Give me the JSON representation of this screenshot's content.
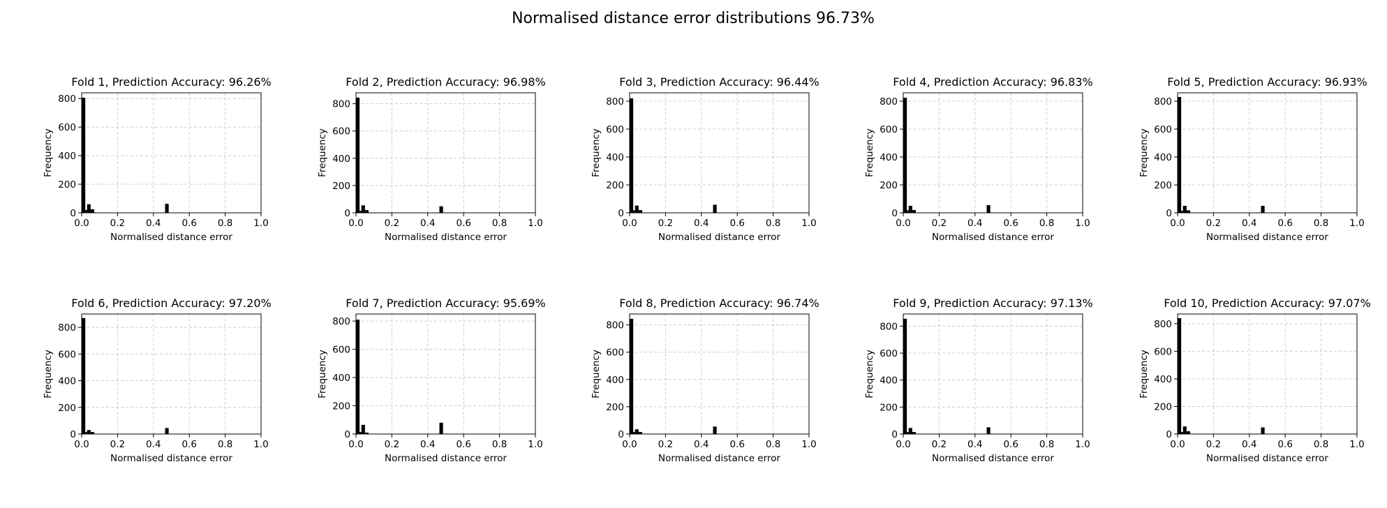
{
  "figure": {
    "suptitle": "Normalised distance error distributions 96.73%"
  },
  "chart_data": [
    {
      "type": "bar",
      "title": "Fold 1, Prediction Accuracy: 96.26%",
      "xlabel": "Normalised distance error",
      "ylabel": "Frequency",
      "xlim": [
        0,
        1.0
      ],
      "ylim": [
        0,
        840
      ],
      "xticks": [
        "0.0",
        "0.2",
        "0.4",
        "0.6",
        "0.8",
        "1.0"
      ],
      "yticks": [
        0,
        200,
        400,
        600,
        800
      ],
      "grid": true,
      "bins": [
        {
          "x0": 0.0,
          "x1": 0.02,
          "count": 806
        },
        {
          "x0": 0.02,
          "x1": 0.03,
          "count": 20
        },
        {
          "x0": 0.03,
          "x1": 0.05,
          "count": 60
        },
        {
          "x0": 0.05,
          "x1": 0.07,
          "count": 25
        },
        {
          "x0": 0.465,
          "x1": 0.485,
          "count": 63
        }
      ]
    },
    {
      "type": "bar",
      "title": "Fold 2, Prediction Accuracy: 96.98%",
      "xlabel": "Normalised distance error",
      "ylabel": "Frequency",
      "xlim": [
        0,
        1.0
      ],
      "ylim": [
        0,
        880
      ],
      "xticks": [
        "0.0",
        "0.2",
        "0.4",
        "0.6",
        "0.8",
        "1.0"
      ],
      "yticks": [
        0,
        200,
        400,
        600,
        800
      ],
      "grid": true,
      "bins": [
        {
          "x0": 0.0,
          "x1": 0.02,
          "count": 845
        },
        {
          "x0": 0.02,
          "x1": 0.03,
          "count": 15
        },
        {
          "x0": 0.03,
          "x1": 0.05,
          "count": 55
        },
        {
          "x0": 0.05,
          "x1": 0.07,
          "count": 20
        },
        {
          "x0": 0.465,
          "x1": 0.485,
          "count": 48
        }
      ]
    },
    {
      "type": "bar",
      "title": "Fold 3, Prediction Accuracy: 96.44%",
      "xlabel": "Normalised distance error",
      "ylabel": "Frequency",
      "xlim": [
        0,
        1.0
      ],
      "ylim": [
        0,
        860
      ],
      "xticks": [
        "0.0",
        "0.2",
        "0.4",
        "0.6",
        "0.8",
        "1.0"
      ],
      "yticks": [
        0,
        200,
        400,
        600,
        800
      ],
      "grid": true,
      "bins": [
        {
          "x0": 0.0,
          "x1": 0.02,
          "count": 820
        },
        {
          "x0": 0.02,
          "x1": 0.03,
          "count": 18
        },
        {
          "x0": 0.03,
          "x1": 0.05,
          "count": 52
        },
        {
          "x0": 0.05,
          "x1": 0.07,
          "count": 20
        },
        {
          "x0": 0.465,
          "x1": 0.485,
          "count": 58
        }
      ]
    },
    {
      "type": "bar",
      "title": "Fold 4, Prediction Accuracy: 96.83%",
      "xlabel": "Normalised distance error",
      "ylabel": "Frequency",
      "xlim": [
        0,
        1.0
      ],
      "ylim": [
        0,
        860
      ],
      "xticks": [
        "0.0",
        "0.2",
        "0.4",
        "0.6",
        "0.8",
        "1.0"
      ],
      "yticks": [
        0,
        200,
        400,
        600,
        800
      ],
      "grid": true,
      "bins": [
        {
          "x0": 0.0,
          "x1": 0.02,
          "count": 825
        },
        {
          "x0": 0.02,
          "x1": 0.03,
          "count": 18
        },
        {
          "x0": 0.03,
          "x1": 0.05,
          "count": 50
        },
        {
          "x0": 0.05,
          "x1": 0.07,
          "count": 20
        },
        {
          "x0": 0.465,
          "x1": 0.485,
          "count": 55
        }
      ]
    },
    {
      "type": "bar",
      "title": "Fold 5, Prediction Accuracy: 96.93%",
      "xlabel": "Normalised distance error",
      "ylabel": "Frequency",
      "xlim": [
        0,
        1.0
      ],
      "ylim": [
        0,
        860
      ],
      "xticks": [
        "0.0",
        "0.2",
        "0.4",
        "0.6",
        "0.8",
        "1.0"
      ],
      "yticks": [
        0,
        200,
        400,
        600,
        800
      ],
      "grid": true,
      "bins": [
        {
          "x0": 0.0,
          "x1": 0.02,
          "count": 830
        },
        {
          "x0": 0.02,
          "x1": 0.03,
          "count": 15
        },
        {
          "x0": 0.03,
          "x1": 0.05,
          "count": 50
        },
        {
          "x0": 0.05,
          "x1": 0.07,
          "count": 18
        },
        {
          "x0": 0.465,
          "x1": 0.485,
          "count": 50
        }
      ]
    },
    {
      "type": "bar",
      "title": "Fold 6, Prediction Accuracy: 97.20%",
      "xlabel": "Normalised distance error",
      "ylabel": "Frequency",
      "xlim": [
        0,
        1.0
      ],
      "ylim": [
        0,
        900
      ],
      "xticks": [
        "0.0",
        "0.2",
        "0.4",
        "0.6",
        "0.8",
        "1.0"
      ],
      "yticks": [
        0,
        200,
        400,
        600,
        800
      ],
      "grid": true,
      "bins": [
        {
          "x0": 0.0,
          "x1": 0.02,
          "count": 870
        },
        {
          "x0": 0.02,
          "x1": 0.03,
          "count": 15
        },
        {
          "x0": 0.03,
          "x1": 0.05,
          "count": 30
        },
        {
          "x0": 0.05,
          "x1": 0.07,
          "count": 15
        },
        {
          "x0": 0.465,
          "x1": 0.485,
          "count": 45
        }
      ]
    },
    {
      "type": "bar",
      "title": "Fold 7, Prediction Accuracy: 95.69%",
      "xlabel": "Normalised distance error",
      "ylabel": "Frequency",
      "xlim": [
        0,
        1.0
      ],
      "ylim": [
        0,
        850
      ],
      "xticks": [
        "0.0",
        "0.2",
        "0.4",
        "0.6",
        "0.8",
        "1.0"
      ],
      "yticks": [
        0,
        200,
        400,
        600,
        800
      ],
      "grid": true,
      "bins": [
        {
          "x0": 0.0,
          "x1": 0.02,
          "count": 810
        },
        {
          "x0": 0.02,
          "x1": 0.03,
          "count": 15
        },
        {
          "x0": 0.03,
          "x1": 0.05,
          "count": 65
        },
        {
          "x0": 0.05,
          "x1": 0.07,
          "count": 10
        },
        {
          "x0": 0.465,
          "x1": 0.485,
          "count": 80
        }
      ]
    },
    {
      "type": "bar",
      "title": "Fold 8, Prediction Accuracy: 96.74%",
      "xlabel": "Normalised distance error",
      "ylabel": "Frequency",
      "xlim": [
        0,
        1.0
      ],
      "ylim": [
        0,
        880
      ],
      "xticks": [
        "0.0",
        "0.2",
        "0.4",
        "0.6",
        "0.8",
        "1.0"
      ],
      "yticks": [
        0,
        200,
        400,
        600,
        800
      ],
      "grid": true,
      "bins": [
        {
          "x0": 0.0,
          "x1": 0.02,
          "count": 845
        },
        {
          "x0": 0.02,
          "x1": 0.03,
          "count": 15
        },
        {
          "x0": 0.03,
          "x1": 0.05,
          "count": 35
        },
        {
          "x0": 0.05,
          "x1": 0.07,
          "count": 15
        },
        {
          "x0": 0.465,
          "x1": 0.485,
          "count": 55
        }
      ]
    },
    {
      "type": "bar",
      "title": "Fold 9, Prediction Accuracy: 97.13%",
      "xlabel": "Normalised distance error",
      "ylabel": "Frequency",
      "xlim": [
        0,
        1.0
      ],
      "ylim": [
        0,
        890
      ],
      "xticks": [
        "0.0",
        "0.2",
        "0.4",
        "0.6",
        "0.8",
        "1.0"
      ],
      "yticks": [
        0,
        200,
        400,
        600,
        800
      ],
      "grid": true,
      "bins": [
        {
          "x0": 0.0,
          "x1": 0.02,
          "count": 855
        },
        {
          "x0": 0.02,
          "x1": 0.03,
          "count": 15
        },
        {
          "x0": 0.03,
          "x1": 0.05,
          "count": 45
        },
        {
          "x0": 0.05,
          "x1": 0.07,
          "count": 15
        },
        {
          "x0": 0.465,
          "x1": 0.485,
          "count": 50
        }
      ]
    },
    {
      "type": "bar",
      "title": "Fold 10, Prediction Accuracy: 97.07%",
      "xlabel": "Normalised distance error",
      "ylabel": "Frequency",
      "xlim": [
        0,
        1.0
      ],
      "ylim": [
        0,
        870
      ],
      "xticks": [
        "0.0",
        "0.2",
        "0.4",
        "0.6",
        "0.8",
        "1.0"
      ],
      "yticks": [
        0,
        200,
        400,
        600,
        800
      ],
      "grid": true,
      "bins": [
        {
          "x0": 0.0,
          "x1": 0.02,
          "count": 840
        },
        {
          "x0": 0.02,
          "x1": 0.03,
          "count": 15
        },
        {
          "x0": 0.03,
          "x1": 0.05,
          "count": 55
        },
        {
          "x0": 0.05,
          "x1": 0.07,
          "count": 20
        },
        {
          "x0": 0.465,
          "x1": 0.485,
          "count": 48
        }
      ]
    }
  ],
  "colors": {
    "bar": "#000000",
    "grid": "#cccccc",
    "axis": "#000000",
    "background": "#ffffff"
  }
}
